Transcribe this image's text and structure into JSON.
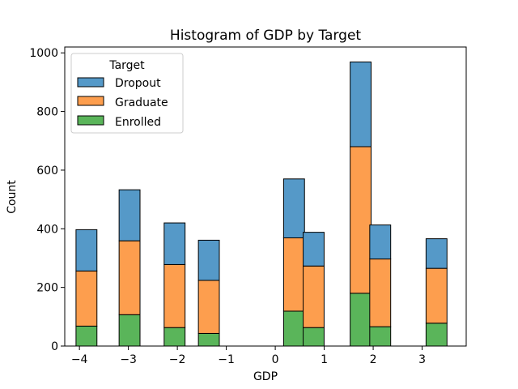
{
  "chart_data": {
    "type": "bar",
    "stacked": true,
    "title": "Histogram of GDP by Target",
    "xlabel": "GDP",
    "ylabel": "Count",
    "xlim": [
      -4.3,
      3.9
    ],
    "ylim": [
      0,
      1020
    ],
    "bin_width": 0.4275,
    "xticks": [
      -4,
      -3,
      -2,
      -1,
      0,
      1,
      2,
      3
    ],
    "xtick_labels": [
      "−4",
      "−3",
      "−2",
      "−1",
      "0",
      "1",
      "2",
      "3"
    ],
    "yticks": [
      0,
      200,
      400,
      600,
      800,
      1000
    ],
    "ytick_labels": [
      "0",
      "200",
      "400",
      "600",
      "800",
      "1000"
    ],
    "grid": false,
    "legend": {
      "title": "Target",
      "placement": "top-left",
      "entries": [
        "Dropout",
        "Graduate",
        "Enrolled"
      ]
    },
    "bin_starts": [
      -4.07,
      -3.19,
      -2.27,
      -1.57,
      0.17,
      0.57,
      1.53,
      1.93,
      3.08
    ],
    "series": [
      {
        "name": "Enrolled",
        "color": "#5ab55a",
        "values": [
          68,
          107,
          63,
          43,
          119,
          63,
          180,
          66,
          78
        ]
      },
      {
        "name": "Graduate",
        "color": "#fd9e4e",
        "values": [
          188,
          252,
          215,
          181,
          250,
          210,
          500,
          231,
          187
        ]
      },
      {
        "name": "Dropout",
        "color": "#5599c8",
        "values": [
          141,
          174,
          142,
          137,
          201,
          115,
          289,
          116,
          101
        ]
      }
    ]
  }
}
